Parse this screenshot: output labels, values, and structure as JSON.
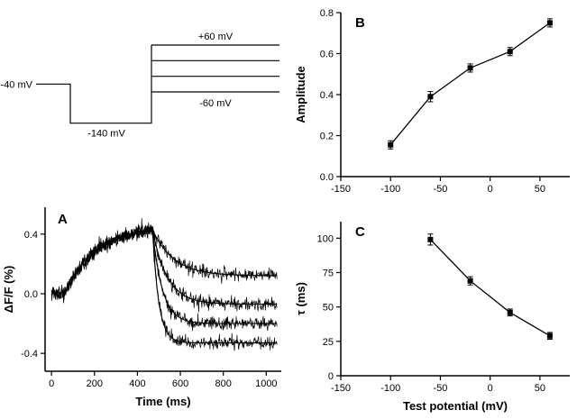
{
  "figure": {
    "background": "#ffffff",
    "ink": "#000000"
  },
  "chart_data": [
    {
      "id": "protocol",
      "type": "line",
      "description": "voltage-step protocol diagram",
      "holding_label": "-40 mV",
      "hyper_label": "-140 mV",
      "top_label": "+60 mV",
      "bottom_label": "-60 mV",
      "holding_mV": -40,
      "hyper_mV": -140,
      "test_mV": [
        60,
        20,
        -20,
        -60
      ]
    },
    {
      "id": "A",
      "type": "line",
      "panel_label": "A",
      "xlabel": "Time (ms)",
      "ylabel": "ΔF/F (%)",
      "xlim": [
        -30,
        1070
      ],
      "ylim": [
        -0.52,
        0.58
      ],
      "xticks": [
        0,
        200,
        400,
        600,
        800,
        1000
      ],
      "yticks": [
        -0.4,
        0.0,
        0.4
      ],
      "xtick_decimals": 0,
      "ytick_decimals": 1,
      "rise": {
        "t0": 60,
        "t1": 470,
        "amplitude": 0.46,
        "tau": 150
      },
      "traces": [
        {
          "test_mV": -60,
          "tau": 99,
          "plateau": 0.12
        },
        {
          "test_mV": -20,
          "tau": 69,
          "plateau": -0.07
        },
        {
          "test_mV": 20,
          "tau": 46,
          "plateau": -0.2
        },
        {
          "test_mV": 60,
          "tau": 29,
          "plateau": -0.33
        }
      ],
      "noise_sd": 0.022,
      "t_end": 1050
    },
    {
      "id": "B",
      "type": "scatter-line",
      "panel_label": "B",
      "xlabel": "",
      "ylabel": "Amplitude",
      "xlim": [
        -150,
        80
      ],
      "ylim": [
        0,
        0.8
      ],
      "xticks": [
        -150,
        -100,
        -50,
        0,
        50
      ],
      "yticks": [
        0.0,
        0.2,
        0.4,
        0.6,
        0.8
      ],
      "xtick_decimals": 0,
      "ytick_decimals": 1,
      "x": [
        -100,
        -60,
        -20,
        20,
        60
      ],
      "y": [
        0.155,
        0.39,
        0.53,
        0.61,
        0.75
      ],
      "yerr": [
        0.02,
        0.025,
        0.02,
        0.02,
        0.02
      ]
    },
    {
      "id": "C",
      "type": "scatter-line",
      "panel_label": "C",
      "xlabel": "Test potential (mV)",
      "ylabel": "τ (ms)",
      "xlim": [
        -150,
        80
      ],
      "ylim": [
        0,
        112
      ],
      "xticks": [
        -150,
        -100,
        -50,
        0,
        50
      ],
      "yticks": [
        0,
        25,
        50,
        75,
        100
      ],
      "xtick_decimals": 0,
      "ytick_decimals": 0,
      "x": [
        -60,
        -20,
        20,
        60
      ],
      "y": [
        99,
        69,
        46,
        29
      ],
      "yerr": [
        4,
        3,
        2.5,
        2.5
      ]
    }
  ]
}
